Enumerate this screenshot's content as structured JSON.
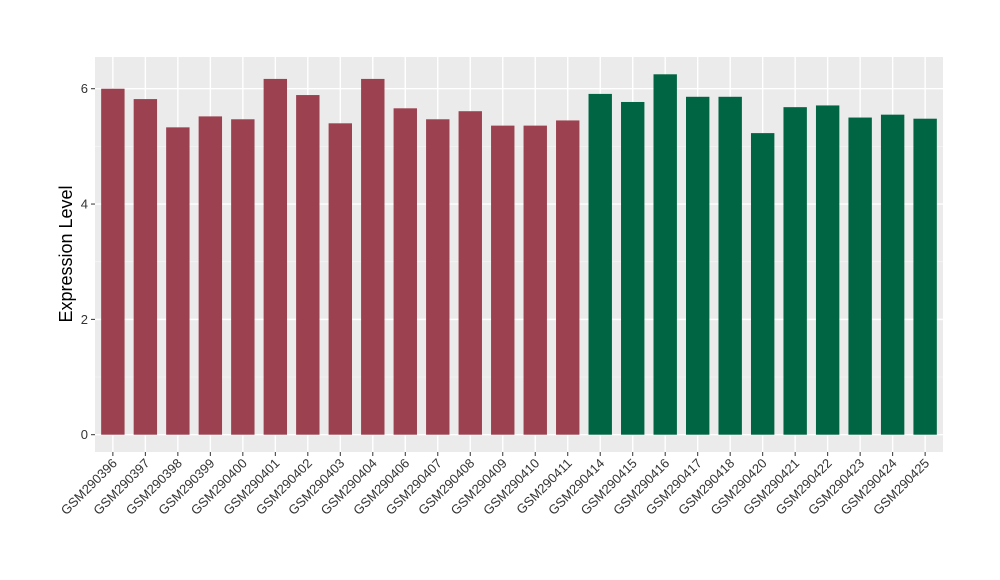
{
  "chart_data": {
    "type": "bar",
    "ylabel": "Expression Level",
    "xlabel": "",
    "ylim": [
      -0.3,
      6.55
    ],
    "yticks": [
      0,
      2,
      4,
      6
    ],
    "grid": true,
    "categories": [
      "GSM290396",
      "GSM290397",
      "GSM290398",
      "GSM290399",
      "GSM290400",
      "GSM290401",
      "GSM290402",
      "GSM290403",
      "GSM290404",
      "GSM290406",
      "GSM290407",
      "GSM290408",
      "GSM290409",
      "GSM290410",
      "GSM290411",
      "GSM290414",
      "GSM290415",
      "GSM290416",
      "GSM290417",
      "GSM290418",
      "GSM290420",
      "GSM290421",
      "GSM290422",
      "GSM290423",
      "GSM290424",
      "GSM290425"
    ],
    "values": [
      6.0,
      5.82,
      5.33,
      5.52,
      5.47,
      6.17,
      5.89,
      5.4,
      6.17,
      5.66,
      5.47,
      5.61,
      5.36,
      5.36,
      5.45,
      5.91,
      5.77,
      6.25,
      5.86,
      5.86,
      5.23,
      5.68,
      5.71,
      5.5,
      5.55,
      5.48
    ],
    "groups": [
      1,
      1,
      1,
      1,
      1,
      1,
      1,
      1,
      1,
      1,
      1,
      1,
      1,
      1,
      1,
      2,
      2,
      2,
      2,
      2,
      2,
      2,
      2,
      2,
      2,
      2
    ],
    "colors": {
      "group1": "#9b4150",
      "group2": "#006542",
      "panel": "#ebebeb",
      "grid_major": "#ffffff",
      "grid_minor": "#f5f5f5"
    }
  }
}
